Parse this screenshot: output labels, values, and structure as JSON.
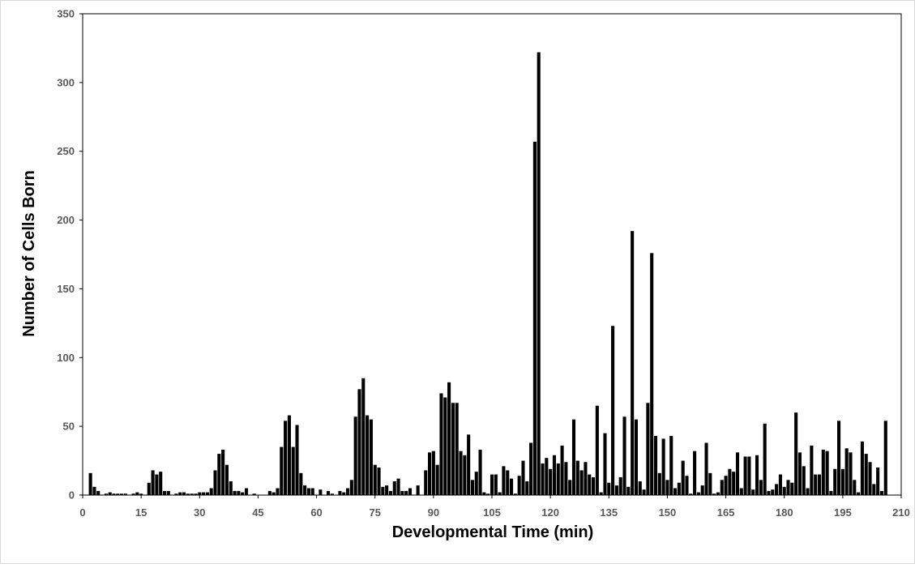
{
  "chart_data": {
    "type": "bar",
    "title": "",
    "xlabel": "Developmental Time (min)",
    "ylabel": "Number of Cells Born",
    "xlim": [
      0,
      210
    ],
    "ylim": [
      0,
      350
    ],
    "xticks": [
      0,
      15,
      30,
      45,
      60,
      75,
      90,
      105,
      120,
      135,
      150,
      165,
      180,
      195,
      210
    ],
    "yticks": [
      0,
      50,
      100,
      150,
      200,
      250,
      300,
      350
    ],
    "grid": false,
    "legend": "none",
    "bar_color": "#000000",
    "bar_width_min": 0.85,
    "x": [
      2,
      3,
      4,
      6,
      7,
      8,
      9,
      10,
      11,
      13,
      14,
      15,
      17,
      18,
      19,
      20,
      21,
      22,
      24,
      25,
      26,
      27,
      28,
      29,
      30,
      31,
      32,
      33,
      34,
      35,
      36,
      37,
      38,
      39,
      40,
      41,
      42,
      44,
      48,
      49,
      50,
      51,
      52,
      53,
      54,
      55,
      56,
      57,
      58,
      59,
      61,
      63,
      64,
      66,
      67,
      68,
      69,
      70,
      71,
      72,
      73,
      74,
      75,
      76,
      77,
      78,
      79,
      80,
      81,
      82,
      83,
      84,
      86,
      88,
      89,
      90,
      91,
      92,
      93,
      94,
      95,
      96,
      97,
      98,
      99,
      100,
      101,
      102,
      103,
      104,
      105,
      106,
      107,
      108,
      109,
      110,
      111,
      112,
      113,
      114,
      115,
      116,
      117,
      118,
      119,
      120,
      121,
      122,
      123,
      124,
      125,
      126,
      127,
      128,
      129,
      130,
      131,
      132,
      133,
      134,
      135,
      136,
      137,
      138,
      139,
      140,
      141,
      142,
      143,
      144,
      145,
      146,
      147,
      148,
      149,
      150,
      151,
      152,
      153,
      154,
      155,
      156,
      157,
      158,
      159,
      160,
      161,
      162,
      163,
      164,
      165,
      166,
      167,
      168,
      169,
      170,
      171,
      172,
      173,
      174,
      175,
      176,
      177,
      178,
      179,
      180,
      181,
      182,
      183,
      184,
      185,
      186,
      187,
      188,
      189,
      190,
      191,
      192,
      193,
      194,
      195,
      196,
      197,
      198,
      199,
      200,
      201,
      202,
      203,
      204,
      205,
      206
    ],
    "values": [
      16,
      6,
      3,
      1,
      2,
      1,
      1,
      1,
      1,
      1,
      2,
      1,
      9,
      18,
      15,
      17,
      3,
      3,
      1,
      2,
      2,
      1,
      1,
      1,
      2,
      2,
      2,
      5,
      18,
      30,
      33,
      22,
      10,
      3,
      3,
      2,
      5,
      1,
      3,
      2,
      5,
      35,
      54,
      58,
      35,
      51,
      16,
      7,
      5,
      5,
      4,
      3,
      1,
      3,
      2,
      5,
      11,
      57,
      77,
      85,
      58,
      55,
      22,
      20,
      6,
      7,
      3,
      10,
      12,
      3,
      3,
      5,
      7,
      18,
      31,
      32,
      22,
      74,
      71,
      82,
      67,
      67,
      32,
      29,
      44,
      11,
      17,
      33,
      2,
      1,
      15,
      15,
      2,
      21,
      18,
      12,
      1,
      14,
      25,
      10,
      38,
      257,
      322,
      23,
      27,
      19,
      29,
      23,
      36,
      24,
      11,
      55,
      25,
      18,
      24,
      15,
      13,
      65,
      2,
      45,
      9,
      123,
      7,
      13,
      57,
      6,
      192,
      55,
      10,
      4,
      67,
      176,
      43,
      16,
      41,
      11,
      43,
      5,
      9,
      25,
      14,
      1,
      32,
      2,
      7,
      38,
      16,
      1,
      2,
      11,
      14,
      19,
      17,
      31,
      5,
      28,
      28,
      4,
      29,
      11,
      52,
      3,
      4,
      8,
      15,
      6,
      11,
      9,
      60,
      31,
      21,
      5,
      36,
      15,
      15,
      33,
      32,
      3,
      19,
      54,
      19,
      34,
      31,
      11,
      2,
      39,
      30,
      24,
      8,
      20,
      3,
      54
    ]
  }
}
